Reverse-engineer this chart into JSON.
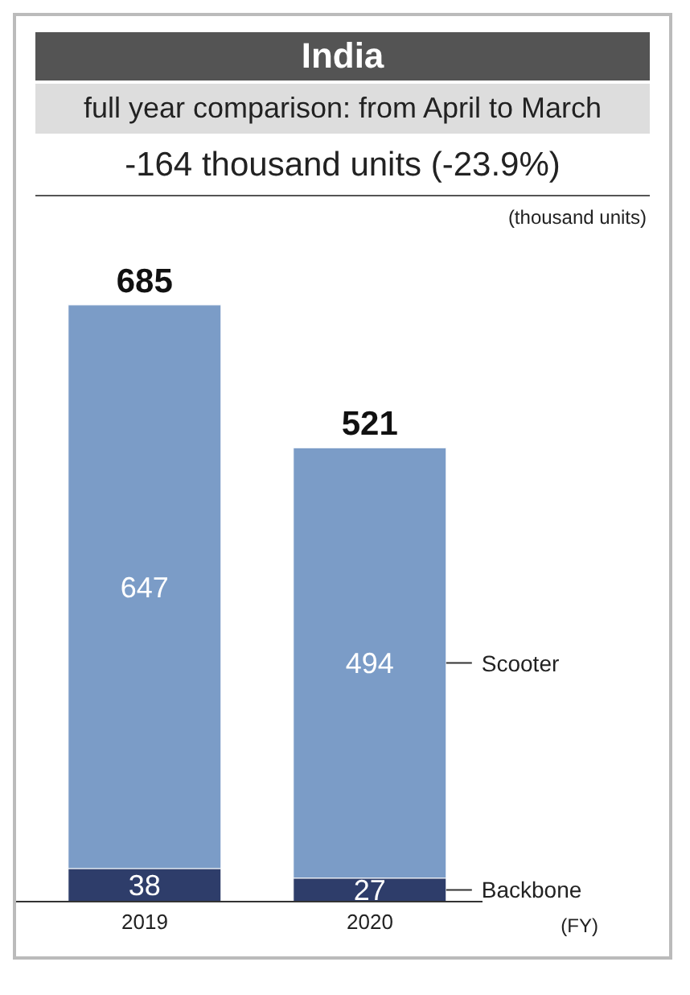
{
  "chart_data": {
    "type": "bar",
    "title": "India",
    "subtitle": "full year comparison: from April to March",
    "annotations": [
      "-164 thousand units (-23.9%)"
    ],
    "ylabel": "(thousand units)",
    "xlabel": "(FY)",
    "categories": [
      "2019",
      "2020"
    ],
    "stacked": true,
    "data_labels": true,
    "totals": [
      "685",
      "521"
    ],
    "legend": false,
    "grid": false,
    "series": [
      {
        "name": "Backbone",
        "color": "#2e3d6a",
        "values": [
          38,
          27
        ]
      },
      {
        "name": "Scooter",
        "color": "#7b9cc7",
        "values": [
          647,
          494
        ]
      }
    ]
  }
}
